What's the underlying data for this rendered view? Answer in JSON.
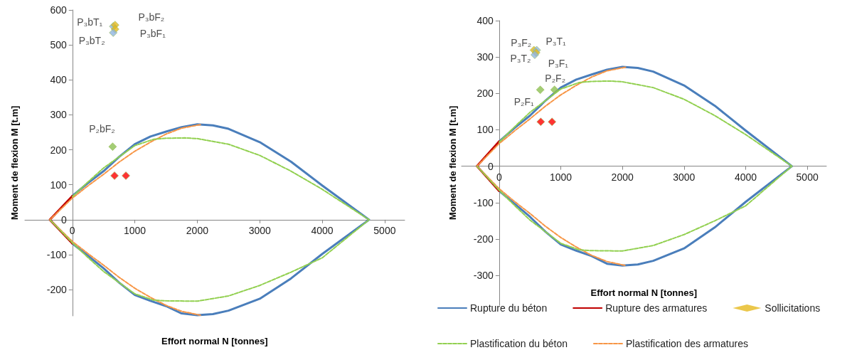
{
  "chart_data": [
    {
      "type": "line",
      "xlabel": "Effort normal N [tonnes]",
      "ylabel": "Moment de flexion M [t.m]",
      "xlim": [
        -760,
        5320
      ],
      "xticks": [
        0,
        1000,
        2000,
        3000,
        4000,
        5000
      ],
      "ylim": [
        -275,
        600
      ],
      "yticks": [
        -200,
        -100,
        0,
        100,
        200,
        300,
        400,
        500,
        600
      ],
      "grid": false,
      "legend": false,
      "series": [
        {
          "color": "#4a7ebb",
          "line_style": "solid",
          "marker": "none",
          "x": [
            0,
            250,
            500,
            750,
            1000,
            1250,
            1500,
            1750,
            2000,
            2250,
            2500,
            3000,
            3500,
            4000,
            4750,
            4000,
            3500,
            3000,
            2500,
            2250,
            2000,
            1750,
            1500,
            1250,
            1000,
            750,
            500,
            250,
            0
          ],
          "values": [
            68,
            105,
            139,
            180,
            216,
            238,
            252,
            265,
            273,
            270,
            260,
            222,
            166,
            98,
            0,
            -98,
            -168,
            -226,
            -260,
            -270,
            -273,
            -268,
            -247,
            -232,
            -215,
            -180,
            -139,
            -103,
            -68
          ]
        },
        {
          "color": "#c00000",
          "line_style": "solid",
          "marker": "none",
          "x": [
            0,
            -360,
            0
          ],
          "values": [
            68,
            0,
            -68
          ]
        },
        {
          "color": "#92d050",
          "line_style": "dashed",
          "marker": "none",
          "x": [
            0,
            250,
            500,
            750,
            1000,
            1300,
            1500,
            1800,
            2000,
            2500,
            3000,
            3500,
            4000,
            4750,
            4000,
            3500,
            3000,
            2500,
            2000,
            1500,
            1300,
            1000,
            750,
            500,
            250,
            0,
            -360
          ],
          "values": [
            66,
            108,
            148,
            180,
            212,
            230,
            233,
            234,
            232,
            216,
            184,
            139,
            87,
            0,
            -109,
            -150,
            -188,
            -218,
            -233,
            -232,
            -230,
            -212,
            -180,
            -148,
            -108,
            -66,
            0
          ]
        },
        {
          "color": "#f79646",
          "line_style": "dashed",
          "marker": "none",
          "x": [
            2050,
            1750,
            1500,
            1250,
            1000,
            750,
            500,
            250,
            0,
            -360,
            0,
            250,
            500,
            750,
            1000,
            1250,
            1500,
            1750,
            2050
          ],
          "values": [
            272,
            262,
            245,
            222,
            196,
            165,
            130,
            97,
            62,
            0,
            -62,
            -97,
            -130,
            -165,
            -196,
            -222,
            -245,
            -262,
            -273
          ]
        },
        {
          "type": "scatter",
          "color": "#e6b91e",
          "marker": "diamond",
          "x": [
            654,
            684,
            684,
            654,
            645,
            675,
            857
          ],
          "values": [
            553,
            557,
            545,
            535,
            209,
            126,
            126
          ],
          "colors": [
            "#8fb4e0",
            "#e6b91e",
            "#e6b91e",
            "#8fb4e0",
            "#8cc152",
            "#ff0000",
            "#ff0000"
          ]
        }
      ],
      "annotations": [
        {
          "text": "P₃bT₁",
          "x": 654,
          "y": 553
        },
        {
          "text": "P₃bF₂",
          "x": 684,
          "y": 557
        },
        {
          "text": "P₃bF₁",
          "x": 684,
          "y": 545
        },
        {
          "text": "P₃bT₂",
          "x": 654,
          "y": 535
        },
        {
          "text": "P₂bF₂",
          "x": 645,
          "y": 209
        }
      ]
    },
    {
      "type": "line",
      "xlabel": "Effort normal N [tonnes]",
      "ylabel": "Moment de flexion M [t.m]",
      "xlim": [
        -610,
        5310
      ],
      "xticks": [
        0,
        1000,
        2000,
        3000,
        4000,
        5000
      ],
      "ylim": [
        -382,
        400
      ],
      "yticks": [
        -300,
        -200,
        -100,
        0,
        100,
        200,
        300,
        400
      ],
      "grid": false,
      "legend": "bottom",
      "series": [
        {
          "name": "Rupture du béton",
          "color": "#4a7ebb",
          "line_style": "solid",
          "marker": "none",
          "x": [
            0,
            250,
            500,
            750,
            1000,
            1250,
            1500,
            1750,
            2000,
            2250,
            2500,
            3000,
            3500,
            4000,
            4750,
            4000,
            3500,
            3000,
            2500,
            2250,
            2000,
            1750,
            1500,
            1250,
            1000,
            750,
            500,
            250,
            0
          ],
          "values": [
            68,
            105,
            139,
            180,
            216,
            238,
            252,
            265,
            273,
            270,
            260,
            222,
            166,
            98,
            0,
            -98,
            -168,
            -226,
            -260,
            -270,
            -273,
            -268,
            -247,
            -232,
            -215,
            -180,
            -139,
            -103,
            -68
          ]
        },
        {
          "name": "Rupture des armatures",
          "color": "#c00000",
          "line_style": "solid",
          "marker": "none",
          "x": [
            0,
            -360,
            0
          ],
          "values": [
            68,
            0,
            -68
          ]
        },
        {
          "type": "scatter",
          "name": "Sollicitations",
          "color": "#e6b91e",
          "marker": "diamond",
          "x": [
            564,
            609,
            600,
            578,
            667,
            898,
            675,
            858
          ],
          "values": [
            319,
            319,
            312,
            306,
            210,
            210,
            122,
            122
          ],
          "colors": [
            "#e6b91e",
            "#8fb4e0",
            "#e6b91e",
            "#8fb4e0",
            "#8cc152",
            "#8cc152",
            "#ff0000",
            "#ff0000"
          ]
        },
        {
          "name": "Plastification du béton",
          "color": "#92d050",
          "line_style": "dashed",
          "marker": "none",
          "x": [
            0,
            250,
            500,
            750,
            1000,
            1300,
            1500,
            1800,
            2000,
            2500,
            3000,
            3500,
            4000,
            4750,
            4000,
            3500,
            3000,
            2500,
            2000,
            1500,
            1300,
            1000,
            750,
            500,
            250,
            0,
            -360
          ],
          "values": [
            66,
            108,
            148,
            180,
            212,
            230,
            233,
            234,
            232,
            216,
            184,
            139,
            87,
            0,
            -109,
            -150,
            -188,
            -218,
            -233,
            -232,
            -230,
            -212,
            -180,
            -148,
            -108,
            -66,
            0
          ]
        },
        {
          "name": "Plastification des armatures",
          "color": "#f79646",
          "line_style": "dashed",
          "marker": "none",
          "x": [
            2050,
            1750,
            1500,
            1250,
            1000,
            750,
            500,
            250,
            0,
            -360,
            0,
            250,
            500,
            750,
            1000,
            1250,
            1500,
            1750,
            2050
          ],
          "values": [
            272,
            262,
            245,
            222,
            196,
            165,
            130,
            97,
            62,
            0,
            -62,
            -97,
            -130,
            -165,
            -196,
            -222,
            -245,
            -262,
            -273
          ]
        }
      ],
      "annotations": [
        {
          "text": "P₃F₂",
          "x": 564,
          "y": 319
        },
        {
          "text": "P₃T₁",
          "x": 609,
          "y": 319
        },
        {
          "text": "P₃T₂",
          "x": 578,
          "y": 306
        },
        {
          "text": "P₃F₁",
          "x": 600,
          "y": 312
        },
        {
          "text": "P₂F₂",
          "x": 898,
          "y": 210
        },
        {
          "text": "P₂F₁",
          "x": 667,
          "y": 210
        }
      ]
    }
  ]
}
